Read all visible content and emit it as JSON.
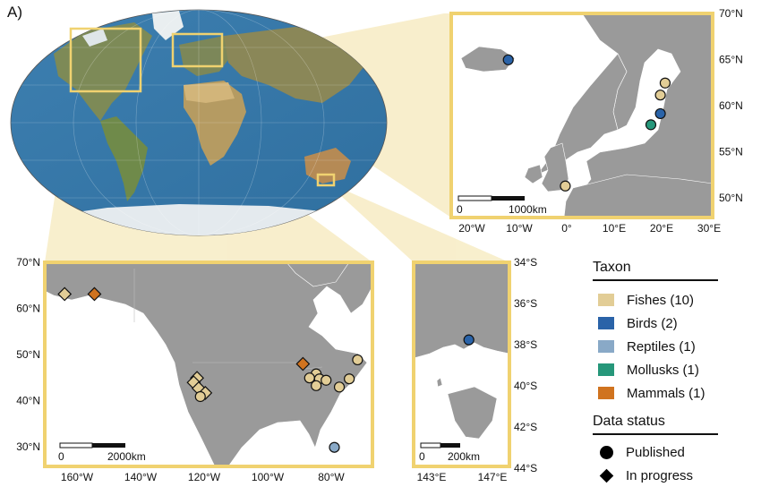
{
  "panel_label": "A)",
  "colors": {
    "Fishes": "#e2cd96",
    "Birds": "#2a63a8",
    "Reptiles": "#89a9c7",
    "Mollusks": "#26977a",
    "Mammals": "#d0731f",
    "frame": "#f0d270",
    "land": "#9a9a9a"
  },
  "europe_inset": {
    "lat_ticks": [
      "70°N",
      "65°N",
      "60°N",
      "55°N",
      "50°N"
    ],
    "lon_ticks": [
      "20°W",
      "10°W",
      "0°",
      "10°E",
      "20°E",
      "30°E"
    ],
    "scale_zero": "0",
    "scale_label": "1000km",
    "points": [
      {
        "taxon": "Birds",
        "status": "Published",
        "lon": -13,
        "lat": 65
      },
      {
        "taxon": "Fishes",
        "status": "Published",
        "lon": 20,
        "lat": 62.5
      },
      {
        "taxon": "Fishes",
        "status": "Published",
        "lon": 19,
        "lat": 61.2
      },
      {
        "taxon": "Birds",
        "status": "Published",
        "lon": 19,
        "lat": 59.2
      },
      {
        "taxon": "Mollusks",
        "status": "Published",
        "lon": 17,
        "lat": 58
      },
      {
        "taxon": "Fishes",
        "status": "Published",
        "lon": -1,
        "lat": 51.4
      }
    ]
  },
  "na_inset": {
    "lat_ticks": [
      "70°N",
      "60°N",
      "50°N",
      "40°N",
      "30°N"
    ],
    "lon_ticks": [
      "160°W",
      "140°W",
      "120°W",
      "100°W",
      "80°W"
    ],
    "scale_zero": "0",
    "scale_label": "2000km",
    "points": [
      {
        "taxon": "Fishes",
        "status": "In progress",
        "lon": -162,
        "lat": 63
      },
      {
        "taxon": "Mammals",
        "status": "In progress",
        "lon": -153,
        "lat": 63
      },
      {
        "taxon": "Mammals",
        "status": "In progress",
        "lon": -90,
        "lat": 47.6
      },
      {
        "taxon": "Fishes",
        "status": "In progress",
        "lon": -122,
        "lat": 44.5
      },
      {
        "taxon": "Fishes",
        "status": "In progress",
        "lon": -123,
        "lat": 43.5
      },
      {
        "taxon": "Fishes",
        "status": "In progress",
        "lon": -121.5,
        "lat": 42.2
      },
      {
        "taxon": "Fishes",
        "status": "In progress",
        "lon": -119.5,
        "lat": 41.2
      },
      {
        "taxon": "Fishes",
        "status": "Published",
        "lon": -121,
        "lat": 40.4
      },
      {
        "taxon": "Fishes",
        "status": "Published",
        "lon": -86,
        "lat": 45.4
      },
      {
        "taxon": "Fishes",
        "status": "Published",
        "lon": -88,
        "lat": 44.5
      },
      {
        "taxon": "Fishes",
        "status": "Published",
        "lon": -85,
        "lat": 44.3
      },
      {
        "taxon": "Fishes",
        "status": "Published",
        "lon": -83,
        "lat": 44
      },
      {
        "taxon": "Fishes",
        "status": "Published",
        "lon": -86,
        "lat": 42.8
      },
      {
        "taxon": "Fishes",
        "status": "Published",
        "lon": -79,
        "lat": 42.5
      },
      {
        "taxon": "Fishes",
        "status": "Published",
        "lon": -76,
        "lat": 44.3
      },
      {
        "taxon": "Fishes",
        "status": "Published",
        "lon": -73.5,
        "lat": 48.5
      },
      {
        "taxon": "Reptiles",
        "status": "Published",
        "lon": -80.5,
        "lat": 29.2
      }
    ]
  },
  "aus_inset": {
    "lat_ticks": [
      "34°S",
      "36°S",
      "38°S",
      "40°S",
      "42°S",
      "44°S"
    ],
    "lon_ticks": [
      "143°E",
      "147°E"
    ],
    "scale_zero": "0",
    "scale_label": "200km",
    "points": [
      {
        "taxon": "Birds",
        "status": "Published",
        "lon": 144.9,
        "lat": -37.8
      }
    ]
  },
  "legend": {
    "taxon_title": "Taxon",
    "taxa": [
      {
        "key": "Fishes",
        "label": "Fishes (10)"
      },
      {
        "key": "Birds",
        "label": "Birds (2)"
      },
      {
        "key": "Reptiles",
        "label": "Reptiles (1)"
      },
      {
        "key": "Mollusks",
        "label": "Mollusks (1)"
      },
      {
        "key": "Mammals",
        "label": "Mammals (1)"
      }
    ],
    "status_title": "Data status",
    "statuses": [
      {
        "shape": "circle",
        "label": "Published"
      },
      {
        "shape": "diamond",
        "label": "In progress"
      }
    ]
  }
}
